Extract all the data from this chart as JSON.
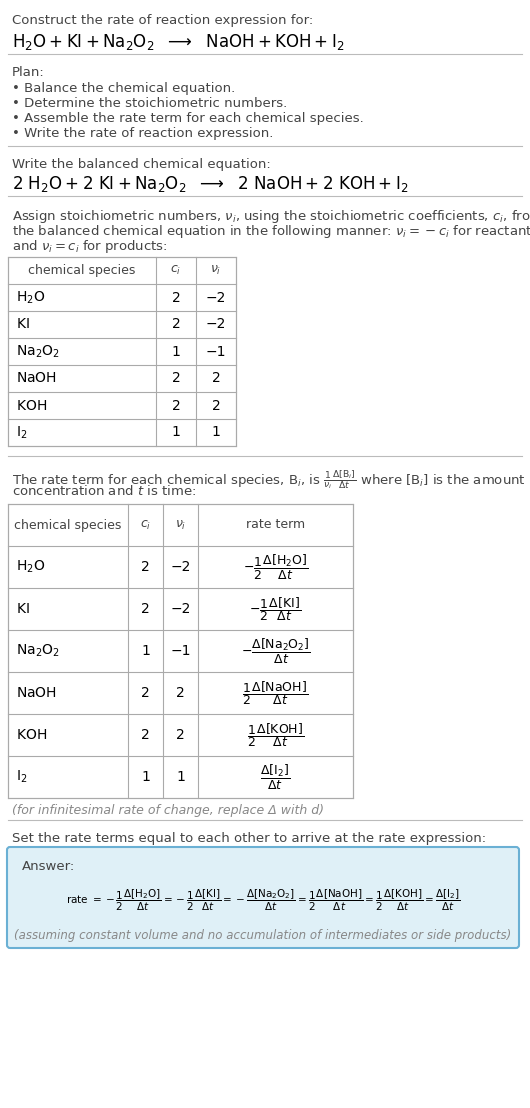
{
  "bg_color": "#ffffff",
  "title_line1": "Construct the rate of reaction expression for:",
  "plan_header": "Plan:",
  "plan_items": [
    "• Balance the chemical equation.",
    "• Determine the stoichiometric numbers.",
    "• Assemble the rate term for each chemical species.",
    "• Write the rate of reaction expression."
  ],
  "balanced_header": "Write the balanced chemical equation:",
  "stoich_intro1": "Assign stoichiometric numbers, ",
  "stoich_intro2": "using the stoichiometric coefficients, ",
  "stoich_intro3": ", from",
  "table1_species": [
    "H_2O",
    "KI",
    "Na_2O_2",
    "NaOH",
    "KOH",
    "I_2"
  ],
  "table1_ci": [
    "2",
    "2",
    "1",
    "2",
    "2",
    "1"
  ],
  "table1_nu": [
    "−2",
    "−2",
    "−1",
    "2",
    "2",
    "1"
  ],
  "table2_species": [
    "H_2O",
    "KI",
    "Na_2O_2",
    "NaOH",
    "KOH",
    "I_2"
  ],
  "table2_ci": [
    "2",
    "2",
    "1",
    "2",
    "2",
    "1"
  ],
  "table2_nu": [
    "−2",
    "−2",
    "−1",
    "2",
    "2",
    "1"
  ],
  "infinitesimal_note": "(for infinitesimal rate of change, replace Δ with d)",
  "set_equal_text": "Set the rate terms equal to each other to arrive at the rate expression:",
  "answer_box_color": "#dff0f7",
  "answer_border_color": "#6ab0d4",
  "answer_label": "Answer:",
  "assuming_note": "(assuming constant volume and no accumulation of intermediates or side products)",
  "gray_text": "#444444",
  "light_gray": "#888888",
  "line_color": "#bbbbbb",
  "table_line_color": "#aaaaaa"
}
